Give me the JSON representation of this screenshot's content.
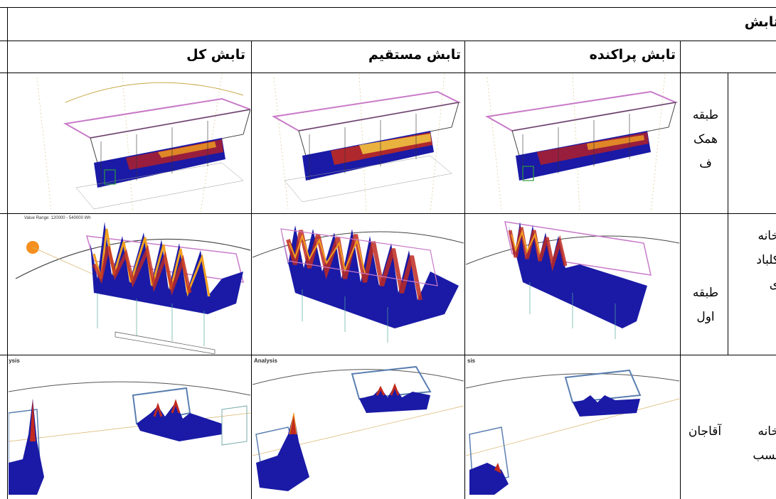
{
  "title": "تابش",
  "columns": {
    "total": "تابش کل",
    "direct": "تابش مستقیم",
    "diffuse": "تابش پراکنده"
  },
  "rows": {
    "house1": {
      "name_lines": [
        "خانه",
        "کلباد",
        "ی"
      ],
      "floor_ground_lines": [
        "طبقه",
        "همک",
        "ف"
      ],
      "floor_first_lines": [
        "طبقه",
        "اول"
      ]
    },
    "house2": {
      "name_lines": [
        "خانه",
        "نسب"
      ],
      "floor": "آقاجان"
    }
  },
  "image_captions": {
    "value_range": "Value Range: 120000 - 540000 Wh",
    "analysis": "Analysis",
    "analysis_part": "lysis",
    "analysis_part2": "sis"
  },
  "colors": {
    "low": "#1a1aa6",
    "mid": "#b0202a",
    "high": "#f0a020",
    "sun": "#f5901e",
    "roof": "#c87ac8"
  }
}
